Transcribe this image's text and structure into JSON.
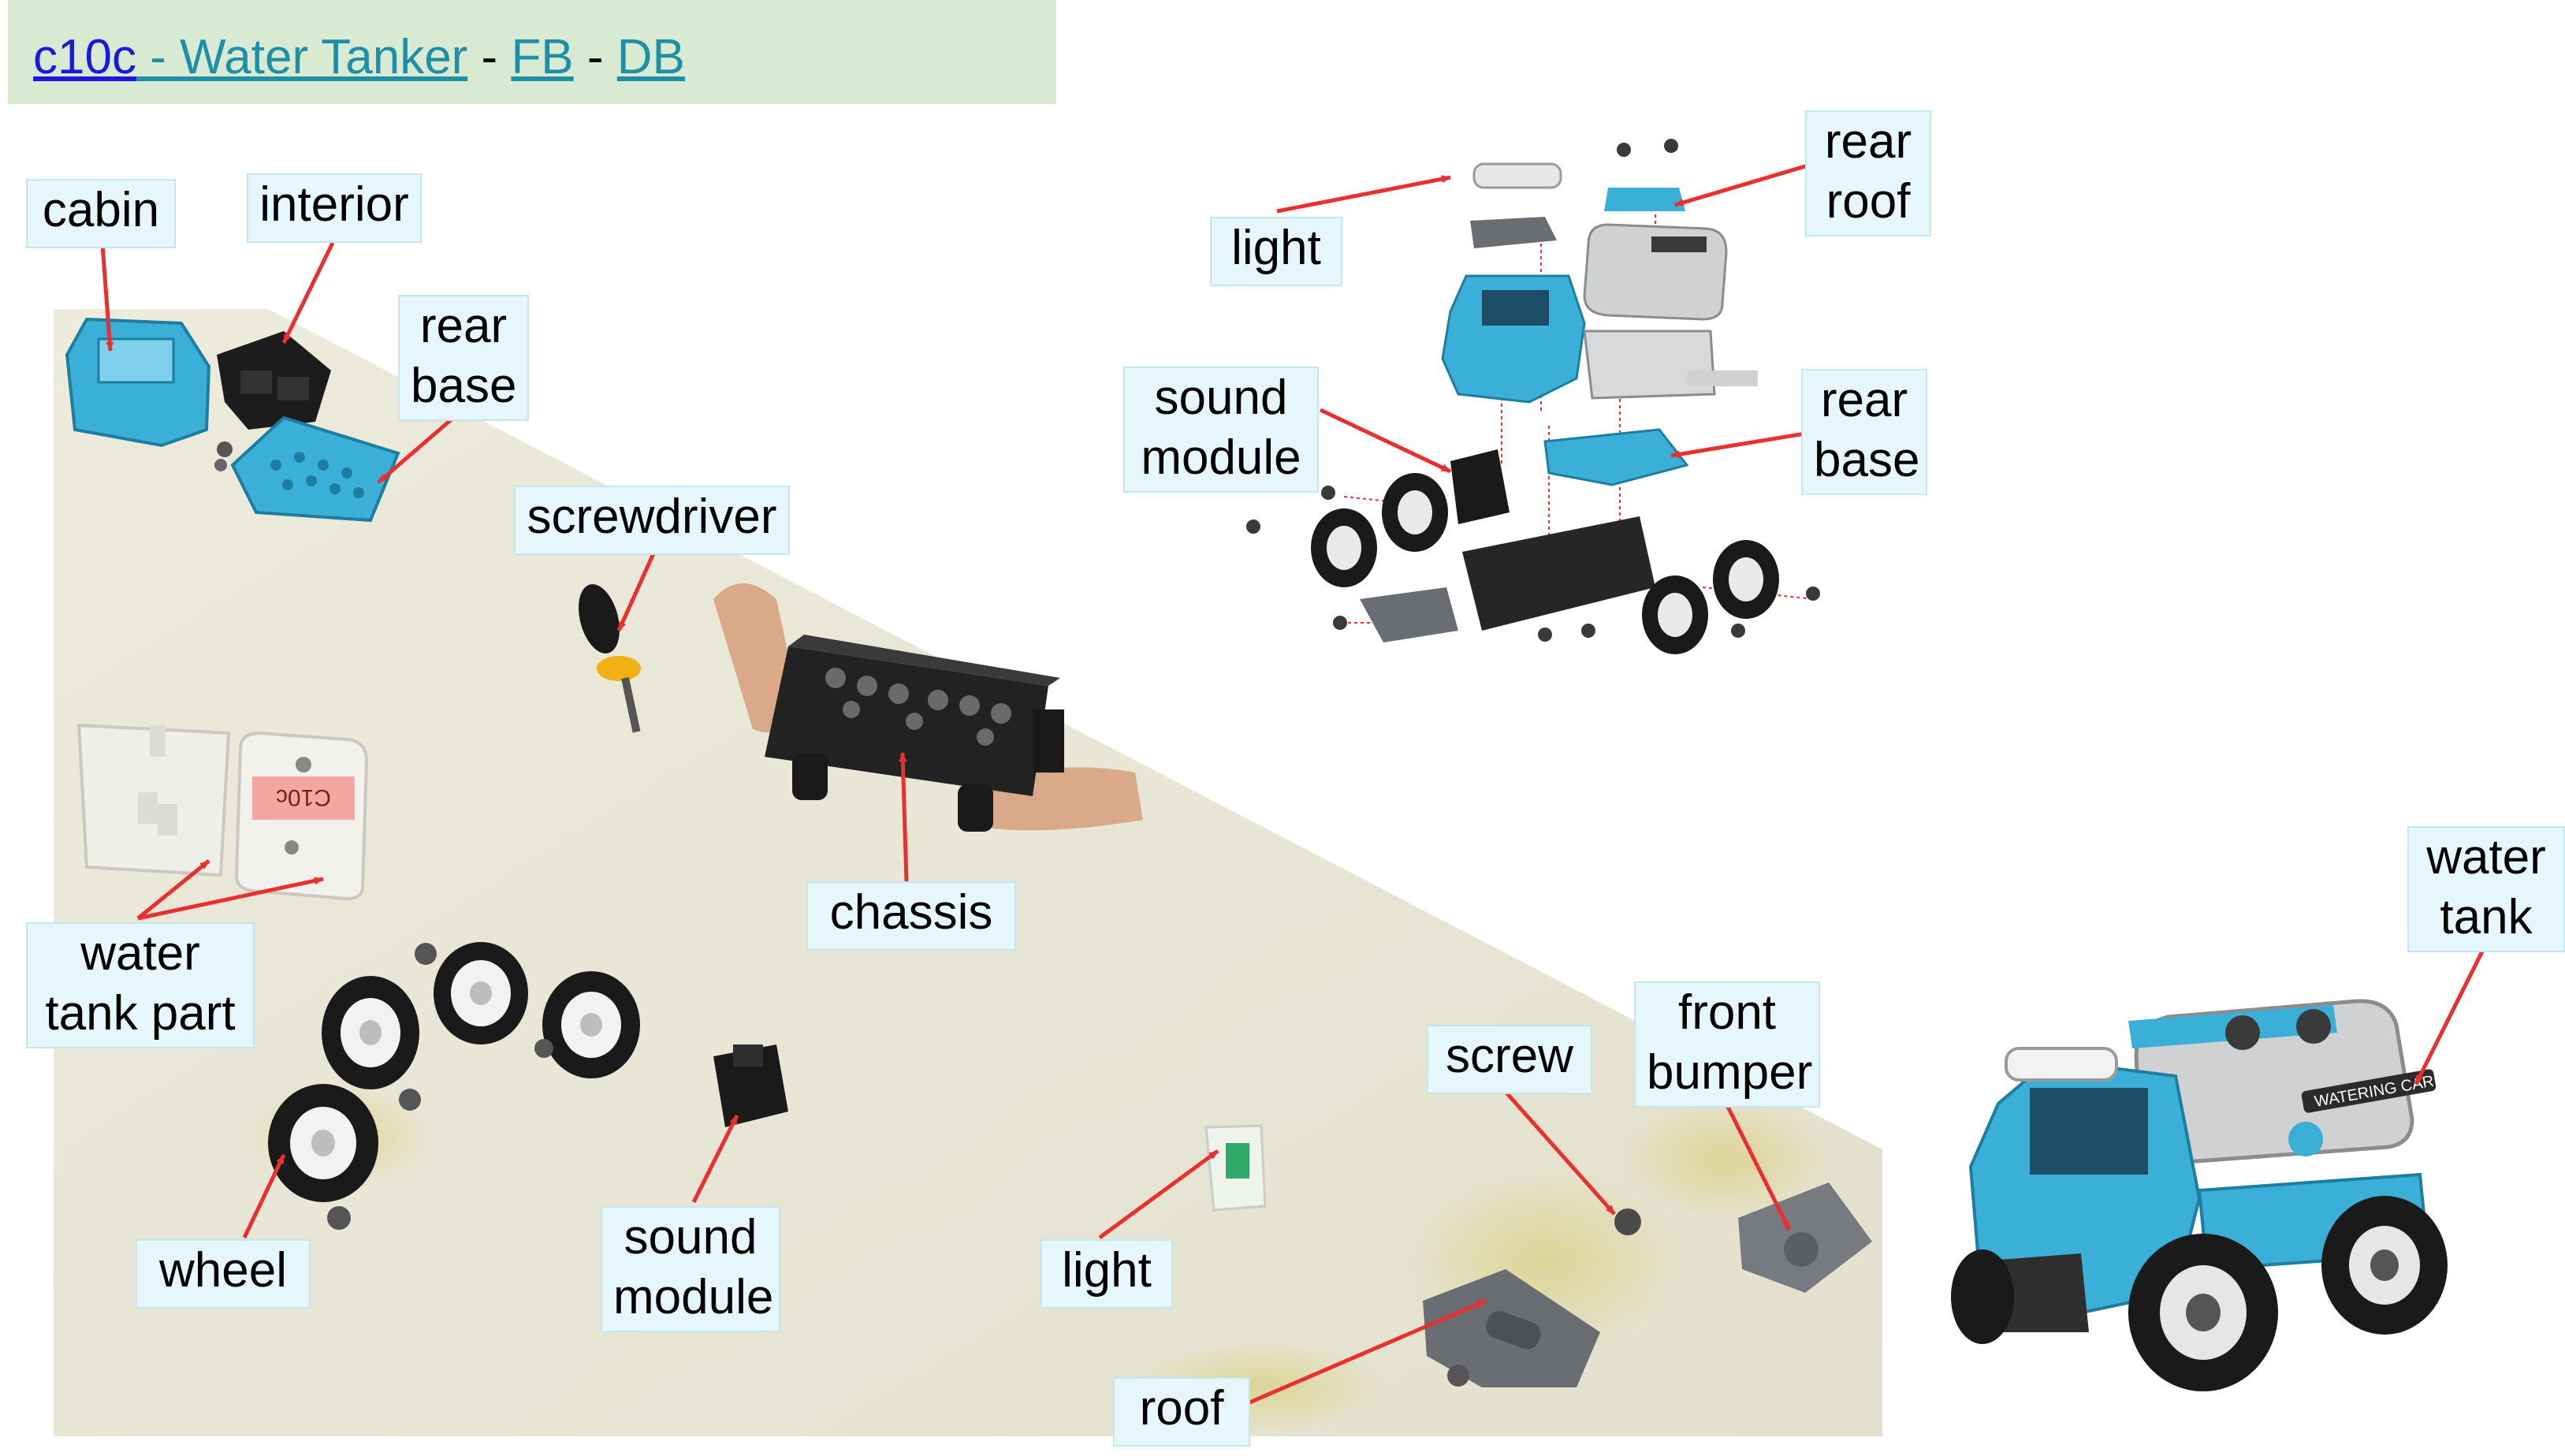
{
  "header": {
    "code": "c10c",
    "title_link": " - Water Tanker",
    "sep1": " - ",
    "fb": "FB",
    "sep2": " - ",
    "db": "DB"
  },
  "labels": {
    "cabin": "cabin",
    "interior": "interior",
    "rear_base_1": "rear",
    "rear_base_2": "base",
    "screwdriver": "screwdriver",
    "chassis": "chassis",
    "water_tank_part_1": "water",
    "water_tank_part_2": "tank part",
    "wheel": "wheel",
    "sound_module_1": "sound",
    "sound_module_2": "module",
    "light": "light",
    "roof": "roof",
    "screw": "screw",
    "front_bumper_1": "front",
    "front_bumper_2": "bumper",
    "diagram_light": "light",
    "diagram_rear_roof_1": "rear",
    "diagram_rear_roof_2": "roof",
    "diagram_sound_module_1": "sound",
    "diagram_sound_module_2": "module",
    "diagram_rear_base_1": "rear",
    "diagram_rear_base_2": "base",
    "water_tank_1": "water",
    "water_tank_2": "tank"
  },
  "parts_sticker": "C10c",
  "truck_badge": "WATERING CAR",
  "colors": {
    "header_bg": "#d9ead3",
    "label_bg": "#e6f7fc",
    "arrow": "#e83030",
    "toy_blue": "#3ab0d8",
    "toy_dark": "#1e1e1e",
    "table_surface": "#e9e8d8"
  }
}
